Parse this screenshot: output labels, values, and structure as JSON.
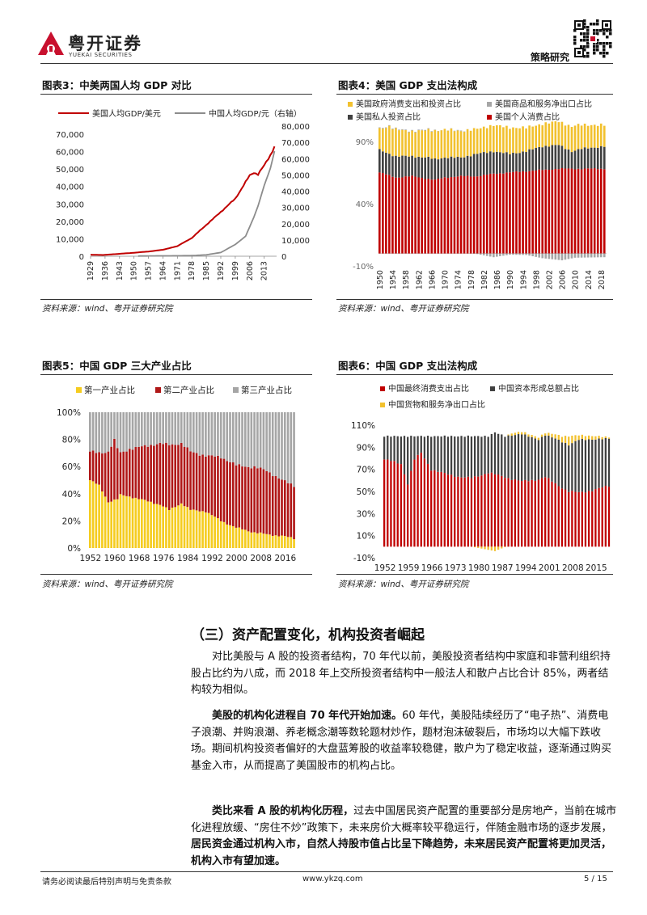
{
  "header": {
    "logo_text": "粤开证券",
    "logo_sub": "YUEKAI SECURITIES",
    "dept": "策略研究"
  },
  "charts": {
    "c3": {
      "title": "图表3：中美两国人均 GDP 对比",
      "source": "资料来源：wind、粤开证券研究院"
    },
    "c4": {
      "title": "图表4：美国 GDP 支出法构成",
      "source": "资料来源：wind、粤开证券研究院"
    },
    "c5": {
      "title": "图表5：中国 GDP 三大产业占比",
      "source": "资料来源：wind、粤开证券研究院"
    },
    "c6": {
      "title": "图表6：中国 GDP 支出法构成",
      "source": "资料来源：wind、粤开证券研究院"
    }
  },
  "chart_data": [
    {
      "type": "line",
      "series": [
        {
          "name": "美国人均GDP/美元",
          "color": "#c00000",
          "axis": "left",
          "x": [
            1929,
            1935,
            1943,
            1950,
            1957,
            1964,
            1971,
            1978,
            1985,
            1992,
            1999,
            2006,
            2008,
            2010,
            2013,
            2016,
            2018
          ],
          "y": [
            860,
            700,
            1400,
            2000,
            2700,
            3700,
            5800,
            10500,
            18000,
            25400,
            33000,
            46300,
            48000,
            47000,
            52000,
            58000,
            63000
          ]
        },
        {
          "name": "中国人均GDP/元（右轴）",
          "color": "#8c8c8c",
          "axis": "right",
          "x": [
            1952,
            1960,
            1970,
            1978,
            1985,
            1992,
            1999,
            2004,
            2008,
            2010,
            2013,
            2016,
            2018
          ],
          "y": [
            120,
            220,
            280,
            385,
            860,
            2300,
            7200,
            12300,
            24000,
            30800,
            43500,
            54000,
            64600
          ]
        }
      ],
      "x_ticks": [
        1929,
        1936,
        1943,
        1950,
        1957,
        1964,
        1971,
        1978,
        1985,
        1992,
        1999,
        2006,
        2013
      ],
      "y_ticks": [
        "70,000",
        "60,000",
        "50,000",
        "40,000",
        "30,000",
        "20,000",
        "10,000",
        "0"
      ],
      "y2_ticks": [
        "80,000",
        "70,000",
        "60,000",
        "50,000",
        "40,000",
        "30,000",
        "20,000",
        "10,000",
        "0"
      ],
      "ylim": [
        0,
        70000
      ],
      "y2lim": [
        0,
        80000
      ],
      "xlim": [
        1929,
        2019
      ]
    },
    {
      "type": "bar",
      "stacked": true,
      "legend": [
        {
          "name": "美国政府消费支出和投资占比",
          "color": "#f2c12e"
        },
        {
          "name": "美国商品和服务净出口占比",
          "color": "#a6a6a6"
        },
        {
          "name": "美国私人投资占比",
          "color": "#404040"
        },
        {
          "name": "美国个人消费占比",
          "color": "#c00000"
        }
      ],
      "x_range": [
        1950,
        2019
      ],
      "x_ticks": [
        "1950",
        "1954",
        "1958",
        "1962",
        "1966",
        "1970",
        "1974",
        "1978",
        "1982",
        "1986",
        "1990",
        "1994",
        "1998",
        "2002",
        "2006",
        "2010",
        "2014",
        "2018"
      ],
      "y_ticks": [
        "90%",
        "40%",
        "-10%"
      ],
      "ylim": [
        -10,
        110
      ],
      "keypoints": {
        "consumption": [
          [
            1950,
            65
          ],
          [
            1955,
            61
          ],
          [
            1960,
            62
          ],
          [
            1967,
            59
          ],
          [
            1970,
            61
          ],
          [
            1975,
            62
          ],
          [
            1980,
            62
          ],
          [
            1985,
            64
          ],
          [
            1990,
            65
          ],
          [
            1995,
            66
          ],
          [
            2000,
            67
          ],
          [
            2005,
            68
          ],
          [
            2010,
            68
          ],
          [
            2019,
            68
          ]
        ],
        "investment": [
          [
            1950,
            18
          ],
          [
            1955,
            17
          ],
          [
            1960,
            16
          ],
          [
            1965,
            17
          ],
          [
            1970,
            16
          ],
          [
            1975,
            15
          ],
          [
            1980,
            18
          ],
          [
            1985,
            18
          ],
          [
            1990,
            15
          ],
          [
            1995,
            16
          ],
          [
            2000,
            19
          ],
          [
            2005,
            19
          ],
          [
            2009,
            14
          ],
          [
            2012,
            16
          ],
          [
            2019,
            18
          ]
        ],
        "government": [
          [
            1950,
            17
          ],
          [
            1953,
            22
          ],
          [
            1960,
            20
          ],
          [
            1967,
            23
          ],
          [
            1972,
            22
          ],
          [
            1980,
            20
          ],
          [
            1985,
            21
          ],
          [
            1990,
            21
          ],
          [
            1995,
            19
          ],
          [
            2000,
            18
          ],
          [
            2005,
            19
          ],
          [
            2010,
            20
          ],
          [
            2019,
            17
          ]
        ],
        "netexports": [
          [
            1950,
            0.5
          ],
          [
            1965,
            0.5
          ],
          [
            1970,
            0
          ],
          [
            1975,
            0.5
          ],
          [
            1980,
            -0.5
          ],
          [
            1985,
            -3
          ],
          [
            1990,
            -1
          ],
          [
            1995,
            -1.2
          ],
          [
            2000,
            -3.8
          ],
          [
            2006,
            -5.5
          ],
          [
            2010,
            -3.4
          ],
          [
            2019,
            -3
          ]
        ]
      }
    },
    {
      "type": "bar",
      "stacked": true,
      "legend": [
        {
          "name": "第一产业占比",
          "color": "#f5cc1f"
        },
        {
          "name": "第二产业占比",
          "color": "#b01717"
        },
        {
          "name": "第三产业占比",
          "color": "#a6a6a6"
        }
      ],
      "x_range": [
        1952,
        2019
      ],
      "x_ticks": [
        "1952",
        "1960",
        "1968",
        "1976",
        "1984",
        "1992",
        "2000",
        "2008",
        "2016"
      ],
      "y_ticks": [
        "100%",
        "80%",
        "60%",
        "40%",
        "20%",
        "0%"
      ],
      "ylim": [
        0,
        100
      ],
      "keypoints": {
        "primary": [
          [
            1952,
            50
          ],
          [
            1955,
            46
          ],
          [
            1958,
            34
          ],
          [
            1961,
            36
          ],
          [
            1962,
            39
          ],
          [
            1965,
            38
          ],
          [
            1970,
            35
          ],
          [
            1975,
            32
          ],
          [
            1978,
            28
          ],
          [
            1982,
            33
          ],
          [
            1985,
            28
          ],
          [
            1990,
            27
          ],
          [
            1995,
            20
          ],
          [
            2000,
            15
          ],
          [
            2005,
            12
          ],
          [
            2010,
            10
          ],
          [
            2015,
            9
          ],
          [
            2019,
            7
          ]
        ],
        "secondary": [
          [
            1952,
            21
          ],
          [
            1955,
            24
          ],
          [
            1958,
            37
          ],
          [
            1960,
            44
          ],
          [
            1962,
            31
          ],
          [
            1965,
            35
          ],
          [
            1970,
            40
          ],
          [
            1975,
            45
          ],
          [
            1978,
            48
          ],
          [
            1982,
            44
          ],
          [
            1985,
            43
          ],
          [
            1990,
            41
          ],
          [
            1995,
            47
          ],
          [
            2000,
            46
          ],
          [
            2006,
            48
          ],
          [
            2010,
            47
          ],
          [
            2015,
            41
          ],
          [
            2019,
            39
          ]
        ]
      }
    },
    {
      "type": "bar",
      "stacked": true,
      "legend": [
        {
          "name": "中国最终消费支出占比",
          "color": "#c00000"
        },
        {
          "name": "中国资本形成总额占比",
          "color": "#404040"
        },
        {
          "name": "中国货物和服务净出口占比",
          "color": "#f2c12e"
        }
      ],
      "x_range": [
        1952,
        2019
      ],
      "x_ticks": [
        "1952",
        "1959",
        "1966",
        "1973",
        "1980",
        "1987",
        "1994",
        "2001",
        "2008",
        "2015"
      ],
      "y_ticks": [
        "110%",
        "90%",
        "70%",
        "50%",
        "30%",
        "10%",
        "-10%"
      ],
      "ylim": [
        -10,
        110
      ],
      "keypoints": {
        "consumption": [
          [
            1952,
            79
          ],
          [
            1957,
            75
          ],
          [
            1959,
            57
          ],
          [
            1961,
            79
          ],
          [
            1963,
            85
          ],
          [
            1966,
            70
          ],
          [
            1970,
            66
          ],
          [
            1975,
            63
          ],
          [
            1978,
            62
          ],
          [
            1983,
            67
          ],
          [
            1988,
            63
          ],
          [
            1993,
            59
          ],
          [
            1998,
            61
          ],
          [
            2000,
            63
          ],
          [
            2003,
            57
          ],
          [
            2007,
            50
          ],
          [
            2010,
            49
          ],
          [
            2014,
            51
          ],
          [
            2019,
            55
          ]
        ],
        "investment": [
          [
            1952,
            21
          ],
          [
            1957,
            25
          ],
          [
            1959,
            43
          ],
          [
            1961,
            21
          ],
          [
            1963,
            15
          ],
          [
            1966,
            30
          ],
          [
            1970,
            34
          ],
          [
            1975,
            37
          ],
          [
            1978,
            38
          ],
          [
            1983,
            33
          ],
          [
            1985,
            38
          ],
          [
            1988,
            37
          ],
          [
            1993,
            43
          ],
          [
            1998,
            36
          ],
          [
            2003,
            41
          ],
          [
            2007,
            42
          ],
          [
            2010,
            48
          ],
          [
            2014,
            46
          ],
          [
            2019,
            43
          ]
        ],
        "netexports": [
          [
            1952,
            0
          ],
          [
            1978,
            0
          ],
          [
            1985,
            -4
          ],
          [
            1990,
            2
          ],
          [
            1995,
            2
          ],
          [
            2000,
            2
          ],
          [
            2005,
            5
          ],
          [
            2007,
            8
          ],
          [
            2010,
            4
          ],
          [
            2015,
            3
          ],
          [
            2019,
            1
          ]
        ]
      }
    }
  ],
  "section": {
    "heading": "（三）资产配置变化，机构投资者崛起",
    "p1": "对比美股与 A 股的投资者结构，70 年代以前，美股投资者结构中家庭和非营利组织持股占比约为八成，而 2018 年上交所投资者结构中一般法人和散户占比合计 85%，两者结构较为相似。",
    "p2_bold": "美股的机构化进程自 70 年代开始加速。",
    "p2_rest": "60 年代，美股陆续经历了“电子热”、消费电子浪潮、并购浪潮、养老概念潮等数轮题材炒作，题材泡沫破裂后，市场均以大幅下跌收场。期间机构投资者偏好的大盘蓝筹股的收益率较稳健，散户为了稳定收益，逐渐通过购买基金入市，从而提高了美国股市的机构占比。",
    "p3_bold": "类比来看 A 股的机构化历程，",
    "p3_mid": "过去中国居民资产配置的重要部分是房地产，当前在城市化进程放缓、“房住不炒”政策下，未来房价大概率较平稳运行，伴随金融市场的逐步发展，",
    "p3_bold2": "居民资金通过机构入市，自然人持股市值占比呈下降趋势，未来居民资产配置将更加灵活，机构入市有望加速。"
  },
  "footer": {
    "disclaimer": "请务必阅读最后特别声明与免责条款",
    "url": "www.ykzq.com",
    "page": "5 / 15"
  }
}
